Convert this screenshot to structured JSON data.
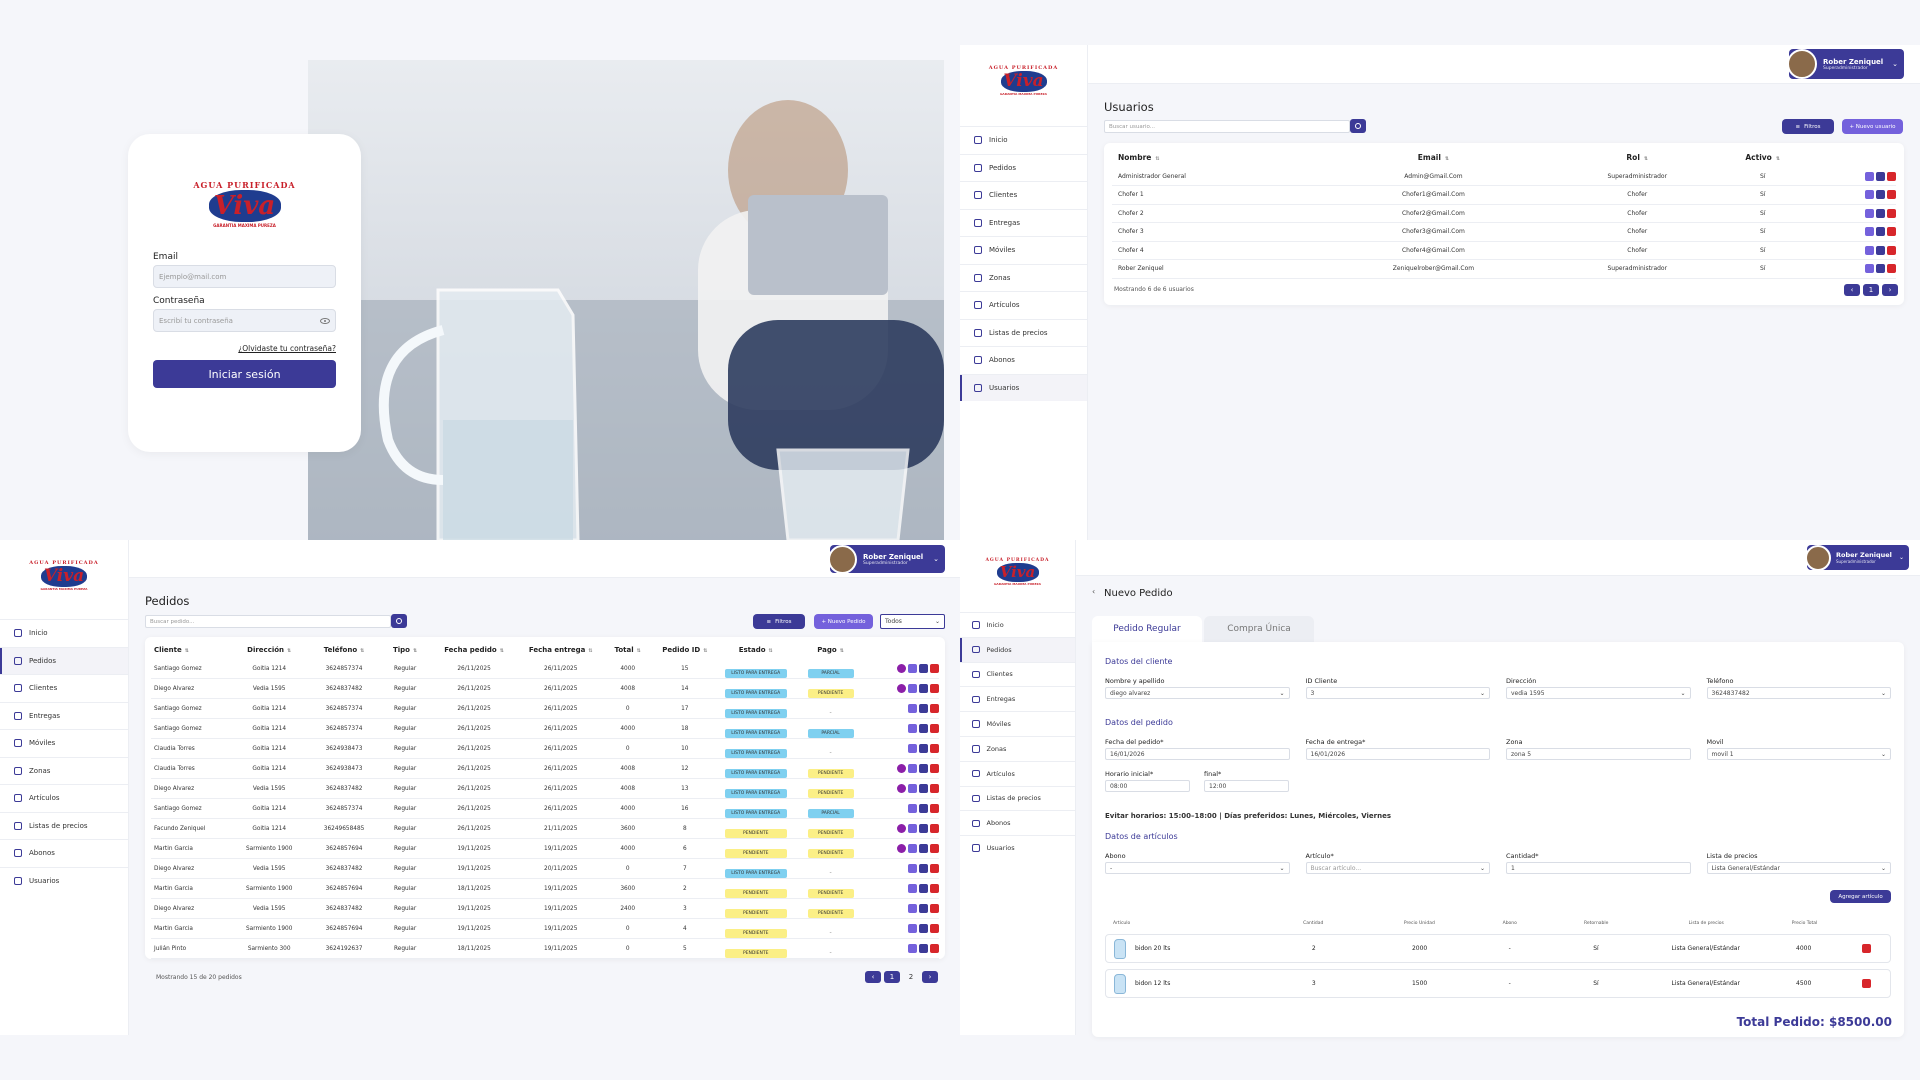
{
  "brand": {
    "logo_top": "AGUA PURIFICADA",
    "logo_main": "Viva",
    "logo_bottom": "GARANTIA MAXIMA PUREZA"
  },
  "colors": {
    "primary": "#3c3a97",
    "accent": "#7461dc",
    "danger": "#d7262b",
    "ready": "#7fd0f0",
    "pending": "#fbef86",
    "background": "#f5f6fa"
  },
  "login": {
    "email_label": "Email",
    "email_placeholder": "Ejemplo@mail.com",
    "password_label": "Contraseña",
    "password_placeholder": "Escribí tu contraseña",
    "forgot_link": "¿Olvidaste tu contraseña?",
    "submit_label": "Iniciar sesión"
  },
  "sidebar": {
    "items": [
      {
        "label": "Inicio",
        "icon": "home-icon"
      },
      {
        "label": "Pedidos",
        "icon": "orders-icon"
      },
      {
        "label": "Clientes",
        "icon": "clients-icon"
      },
      {
        "label": "Entregas",
        "icon": "deliveries-icon"
      },
      {
        "label": "Móviles",
        "icon": "truck-icon"
      },
      {
        "label": "Zonas",
        "icon": "map-pin-icon"
      },
      {
        "label": "Artículos",
        "icon": "box-icon"
      },
      {
        "label": "Listas de precios",
        "icon": "dollar-icon"
      },
      {
        "label": "Abonos",
        "icon": "receipt-icon"
      },
      {
        "label": "Usuarios",
        "icon": "user-icon"
      }
    ]
  },
  "user": {
    "name": "Rober Zeniquel",
    "role": "Superadministrador"
  },
  "usuarios": {
    "title": "Usuarios",
    "search_placeholder": "Buscar usuario...",
    "filters_label": "Filtros",
    "new_label": "+ Nuevo usuario",
    "columns": [
      "Nombre",
      "Email",
      "Rol",
      "Activo"
    ],
    "rows": [
      [
        "Administrador General",
        "Admin@Gmail.Com",
        "Superadministrador",
        "Sí"
      ],
      [
        "Chofer 1",
        "Chofer1@Gmail.Com",
        "Chofer",
        "Sí"
      ],
      [
        "Chofer 2",
        "Chofer2@Gmail.Com",
        "Chofer",
        "Sí"
      ],
      [
        "Chofer 3",
        "Chofer3@Gmail.Com",
        "Chofer",
        "Sí"
      ],
      [
        "Chofer 4",
        "Chofer4@Gmail.Com",
        "Chofer",
        "Sí"
      ],
      [
        "Rober Zeniquel",
        "Zeniquelrober@Gmail.Com",
        "Superadministrador",
        "Sí"
      ]
    ],
    "footer": "Mostrando 6 de 6 usuarios",
    "pages": [
      "‹",
      "1",
      "›"
    ]
  },
  "pedidos": {
    "title": "Pedidos",
    "search_placeholder": "Buscar pedido...",
    "filters_label": "Filtros",
    "new_label": "+ Nuevo Pedido",
    "select_value": "Todos",
    "columns": [
      "Cliente",
      "Dirección",
      "Teléfono",
      "Tipo",
      "Fecha pedido",
      "Fecha entrega",
      "Total",
      "Pedido ID",
      "Estado",
      "Pago"
    ],
    "rows": [
      {
        "c": [
          "Santiago Gomez",
          "Goitia 1214",
          "3624857374",
          "Regular",
          "26/11/2025",
          "26/11/2025",
          "4000",
          "15"
        ],
        "estado": "LISTO PARA ENTREGA",
        "pago": "PARCIAL",
        "extra": true
      },
      {
        "c": [
          "Diego Alvarez",
          "Vedia 1595",
          "3624837482",
          "Regular",
          "26/11/2025",
          "26/11/2025",
          "4008",
          "14"
        ],
        "estado": "LISTO PARA ENTREGA",
        "pago": "PENDIENTE",
        "extra": true
      },
      {
        "c": [
          "Santiago Gomez",
          "Goitia 1214",
          "3624857374",
          "Regular",
          "26/11/2025",
          "26/11/2025",
          "0",
          "17"
        ],
        "estado": "LISTO PARA ENTREGA",
        "pago": "-",
        "extra": false
      },
      {
        "c": [
          "Santiago Gomez",
          "Goitia 1214",
          "3624857374",
          "Regular",
          "26/11/2025",
          "26/11/2025",
          "4000",
          "18"
        ],
        "estado": "LISTO PARA ENTREGA",
        "pago": "PARCIAL",
        "extra": false
      },
      {
        "c": [
          "Claudia Torres",
          "Goitia 1214",
          "3624938473",
          "Regular",
          "26/11/2025",
          "26/11/2025",
          "0",
          "10"
        ],
        "estado": "LISTO PARA ENTREGA",
        "pago": "-",
        "extra": false
      },
      {
        "c": [
          "Claudia Torres",
          "Goitia 1214",
          "3624938473",
          "Regular",
          "26/11/2025",
          "26/11/2025",
          "4008",
          "12"
        ],
        "estado": "LISTO PARA ENTREGA",
        "pago": "PENDIENTE",
        "extra": true
      },
      {
        "c": [
          "Diego Alvarez",
          "Vedia 1595",
          "3624837482",
          "Regular",
          "26/11/2025",
          "26/11/2025",
          "4008",
          "13"
        ],
        "estado": "LISTO PARA ENTREGA",
        "pago": "PENDIENTE",
        "extra": true
      },
      {
        "c": [
          "Santiago Gomez",
          "Goitia 1214",
          "3624857374",
          "Regular",
          "26/11/2025",
          "26/11/2025",
          "4000",
          "16"
        ],
        "estado": "LISTO PARA ENTREGA",
        "pago": "PARCIAL",
        "extra": false
      },
      {
        "c": [
          "Facundo Zeniquel",
          "Goitia 1214",
          "36249658485",
          "Regular",
          "26/11/2025",
          "21/11/2025",
          "3600",
          "8"
        ],
        "estado": "PENDIENTE",
        "pago": "PENDIENTE",
        "extra": true
      },
      {
        "c": [
          "Martin Garcia",
          "Sarmiento 1900",
          "3624857694",
          "Regular",
          "19/11/2025",
          "19/11/2025",
          "4000",
          "6"
        ],
        "estado": "PENDIENTE",
        "pago": "PENDIENTE",
        "extra": true
      },
      {
        "c": [
          "Diego Alvarez",
          "Vedia 1595",
          "3624837482",
          "Regular",
          "19/11/2025",
          "20/11/2025",
          "0",
          "7"
        ],
        "estado": "LISTO PARA ENTREGA",
        "pago": "-",
        "extra": false
      },
      {
        "c": [
          "Martin Garcia",
          "Sarmiento 1900",
          "3624857694",
          "Regular",
          "18/11/2025",
          "19/11/2025",
          "3600",
          "2"
        ],
        "estado": "PENDIENTE",
        "pago": "PENDIENTE",
        "extra": false
      },
      {
        "c": [
          "Diego Alvarez",
          "Vedia 1595",
          "3624837482",
          "Regular",
          "19/11/2025",
          "19/11/2025",
          "2400",
          "3"
        ],
        "estado": "PENDIENTE",
        "pago": "PENDIENTE",
        "extra": false
      },
      {
        "c": [
          "Martin Garcia",
          "Sarmiento 1900",
          "3624857694",
          "Regular",
          "19/11/2025",
          "19/11/2025",
          "0",
          "4"
        ],
        "estado": "PENDIENTE",
        "pago": "-",
        "extra": false
      },
      {
        "c": [
          "Julián Pinto",
          "Sarmiento 300",
          "3624192637",
          "Regular",
          "18/11/2025",
          "19/11/2025",
          "0",
          "5"
        ],
        "estado": "PENDIENTE",
        "pago": "-",
        "extra": false
      }
    ],
    "footer": "Mostrando 15 de 20 pedidos",
    "pages": [
      "‹",
      "1",
      "2",
      "›"
    ]
  },
  "nuevo": {
    "back": "‹",
    "title": "Nuevo Pedido",
    "tab_regular": "Pedido Regular",
    "tab_unica": "Compra Única",
    "sec_cliente": "Datos del cliente",
    "cliente_fields": [
      {
        "label": "Nombre y apellido",
        "value": "diego alvarez"
      },
      {
        "label": "ID Cliente",
        "value": "3"
      },
      {
        "label": "Dirección",
        "value": "vedia 1595"
      },
      {
        "label": "Teléfono",
        "value": "3624837482"
      }
    ],
    "sec_pedido": "Datos del pedido",
    "pedido_fields": [
      {
        "label": "Fecha del pedido*",
        "value": "16/01/2026"
      },
      {
        "label": "Fecha de entrega*",
        "value": "16/01/2026"
      },
      {
        "label": "Zona",
        "value": "zona 5"
      },
      {
        "label": "Movil",
        "value": "movil 1"
      }
    ],
    "horario_inicial_label": "Horario inicial*",
    "horario_inicial": "08:00",
    "final_label": "final*",
    "final_value": "12:00",
    "nota": "Evitar horarios: 15:00–18:00 | Días preferidos: Lunes, Miércoles, Viernes",
    "sec_articulos": "Datos de artículos",
    "art_fields": [
      {
        "label": "Abono",
        "value": "-"
      },
      {
        "label": "Artículo*",
        "value": "Buscar artículo..."
      },
      {
        "label": "Cantidad*",
        "value": "1"
      },
      {
        "label": "Lista de precios",
        "value": "Lista General/Estándar"
      }
    ],
    "add_label": "Agregar artículo",
    "item_columns": [
      "Artículo",
      "Cantidad",
      "Precio Unidad",
      "Abono",
      "Retornable",
      "Lista de precios",
      "Precio Total"
    ],
    "items": [
      [
        "bidon 20 lts",
        "2",
        "2000",
        "-",
        "Sí",
        "Lista General/Estándar",
        "4000"
      ],
      [
        "bidon 12 lts",
        "3",
        "1500",
        "-",
        "Sí",
        "Lista General/Estándar",
        "4500"
      ]
    ],
    "total_label": "Total Pedido:",
    "total_value": "$8500.00"
  }
}
